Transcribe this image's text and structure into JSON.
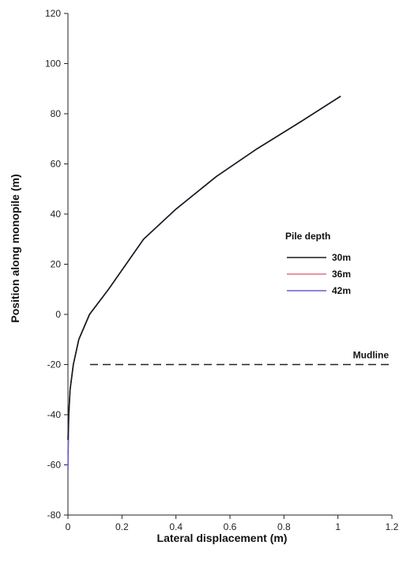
{
  "chart_data": {
    "type": "line",
    "xlabel": "Lateral displacement (m)",
    "ylabel": "Position along monopile (m)",
    "xlim": [
      0,
      1.2
    ],
    "ylim": [
      -80,
      120
    ],
    "x_ticks": [
      "0",
      "0.2",
      "0.4",
      "0.6",
      "0.8",
      "1",
      "1.2"
    ],
    "y_ticks": [
      "-80",
      "-60",
      "-40",
      "-20",
      "0",
      "20",
      "40",
      "60",
      "80",
      "100",
      "120"
    ],
    "grid": false,
    "legend": {
      "title": "Pile depth",
      "placement": "center-right",
      "entries": [
        "30m",
        "36m",
        "42m"
      ]
    },
    "series": [
      {
        "name": "30m",
        "color": "#1a1a1a",
        "x": [
          0.0,
          0.003,
          0.008,
          0.02,
          0.04,
          0.08,
          0.15,
          0.28,
          0.4,
          0.55,
          0.7,
          0.85,
          1.01
        ],
        "y": [
          -50,
          -40,
          -30,
          -20,
          -10,
          0,
          10,
          30,
          42,
          55,
          66,
          76,
          87
        ]
      },
      {
        "name": "36m",
        "color": "#e07080",
        "x": [
          0.0,
          0.003,
          0.008,
          0.02,
          0.04,
          0.08,
          0.15,
          0.28,
          0.4,
          0.55,
          0.7,
          0.85,
          1.01
        ],
        "y": [
          -56,
          -40,
          -30,
          -20,
          -10,
          0,
          10,
          30,
          42,
          55,
          66,
          76,
          87
        ]
      },
      {
        "name": "42m",
        "color": "#6a5acd",
        "x": [
          0.0,
          0.003,
          0.008,
          0.02,
          0.04,
          0.08,
          0.15,
          0.28,
          0.4,
          0.55,
          0.7,
          0.85,
          1.01
        ],
        "y": [
          -62,
          -40,
          -30,
          -20,
          -10,
          0,
          10,
          30,
          42,
          55,
          66,
          76,
          87
        ]
      }
    ],
    "annotations": [
      {
        "text": "Mudline",
        "y": -20,
        "style": "dashed horizontal line"
      }
    ]
  }
}
